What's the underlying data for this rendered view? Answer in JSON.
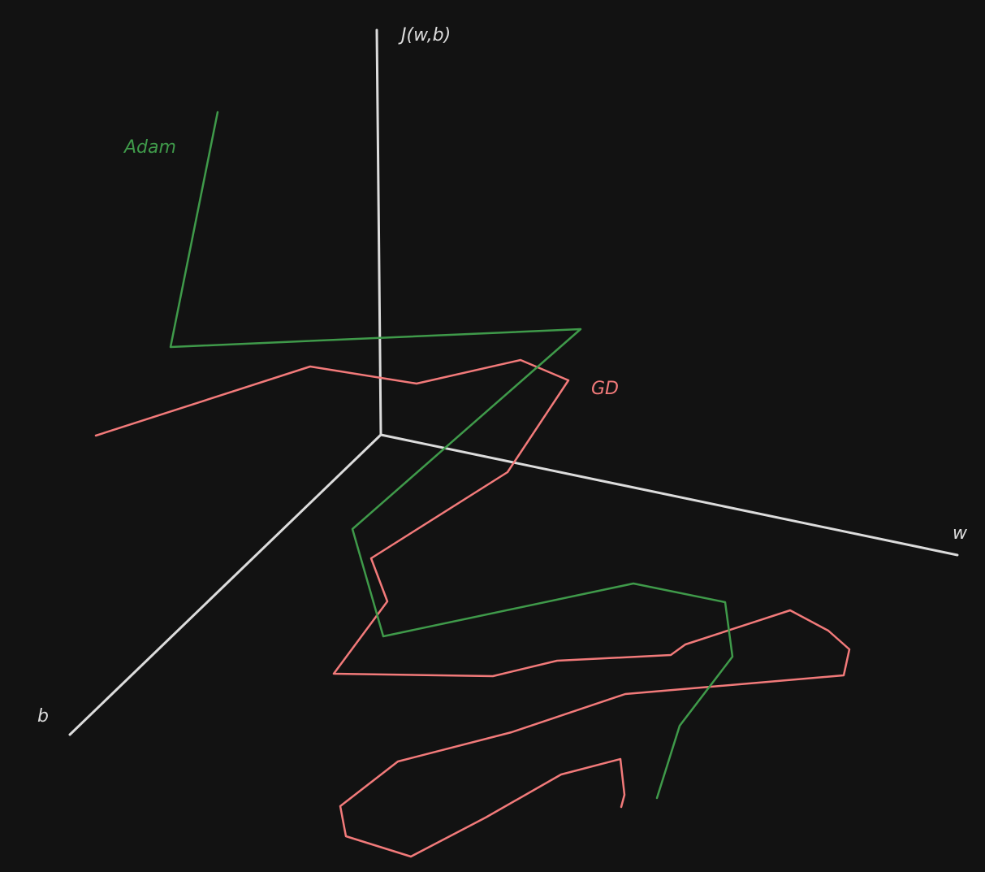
{
  "colors": {
    "background": "#121212",
    "axis": "#dcdcdc",
    "adam": "#3f9a4a",
    "gd": "#f27a7a"
  },
  "axes": {
    "vertical_label": "J(w,b)",
    "right_label": "w",
    "left_label": "b"
  },
  "paths": {
    "adam_label": "Adam",
    "gd_label": "GD"
  }
}
